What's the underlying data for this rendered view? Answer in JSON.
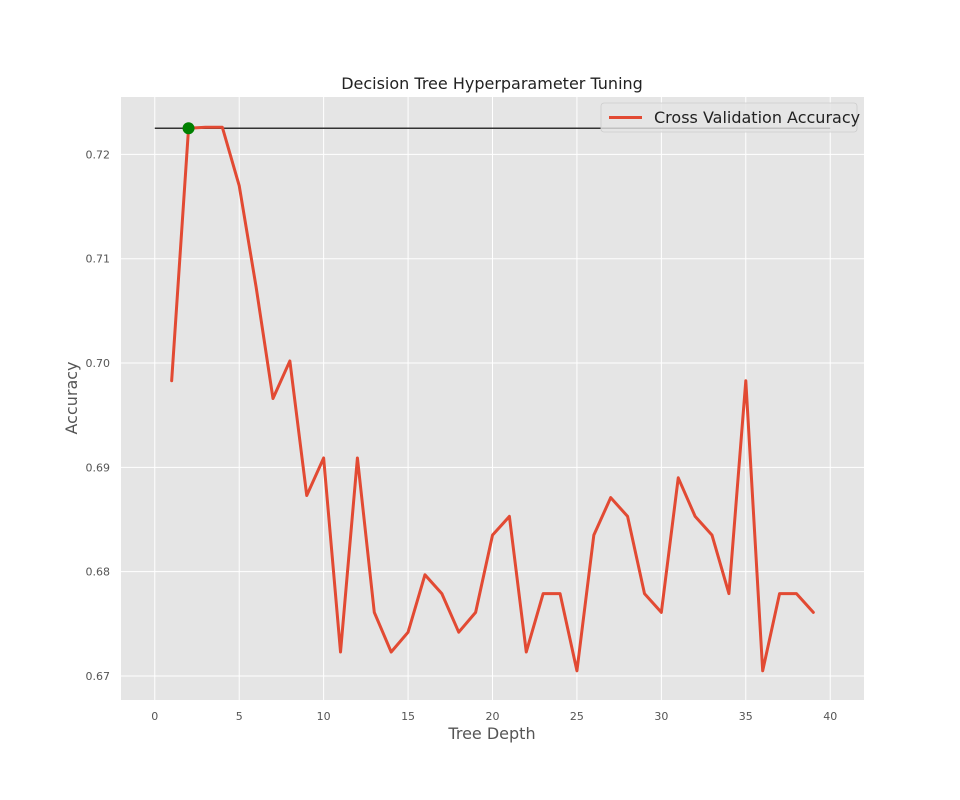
{
  "chart_data": {
    "type": "line",
    "title": "Decision Tree Hyperparameter Tuning",
    "xlabel": "Tree Depth",
    "ylabel": "Accuracy",
    "xlim": [
      -2,
      42
    ],
    "ylim": [
      0.6677,
      0.7255
    ],
    "xticks": [
      0,
      5,
      10,
      15,
      20,
      25,
      30,
      35,
      40
    ],
    "xtick_labels": [
      "0",
      "5",
      "10",
      "15",
      "20",
      "25",
      "30",
      "35",
      "40"
    ],
    "yticks": [
      0.67,
      0.68,
      0.69,
      0.7,
      0.71,
      0.72
    ],
    "ytick_labels": [
      "0.67",
      "0.68",
      "0.69",
      "0.70",
      "0.71",
      "0.72"
    ],
    "grid": true,
    "legend": "top-right",
    "colors": {
      "series": "#E24A33",
      "reference": "#333333",
      "marker": "#008000",
      "plot_bg": "#E5E5E5",
      "grid": "#FFFFFF"
    },
    "series": [
      {
        "name": "Cross Validation Accuracy",
        "x": [
          1,
          2,
          3,
          4,
          5,
          6,
          7,
          8,
          9,
          10,
          11,
          12,
          13,
          14,
          15,
          16,
          17,
          18,
          19,
          20,
          21,
          22,
          23,
          24,
          25,
          26,
          27,
          28,
          29,
          30,
          31,
          32,
          33,
          34,
          35,
          36,
          37,
          38,
          39
        ],
        "values": [
          0.6983,
          0.7225,
          0.7226,
          0.7226,
          0.717,
          0.7073,
          0.6966,
          0.7002,
          0.6873,
          0.6909,
          0.6723,
          0.6909,
          0.6761,
          0.6723,
          0.6742,
          0.6797,
          0.6779,
          0.6742,
          0.6761,
          0.6835,
          0.6853,
          0.6723,
          0.6779,
          0.6779,
          0.6705,
          0.6835,
          0.6871,
          0.6853,
          0.6779,
          0.6761,
          0.689,
          0.6853,
          0.6835,
          0.6779,
          0.6983,
          0.6705,
          0.6779,
          0.6779,
          0.6761
        ]
      }
    ],
    "reference_line": {
      "y": 0.7225,
      "x_from": 0,
      "x_to": 40
    },
    "best_point": {
      "x": 2,
      "y": 0.7225
    }
  }
}
